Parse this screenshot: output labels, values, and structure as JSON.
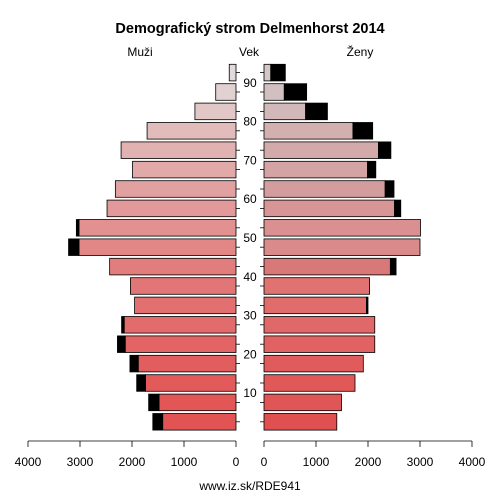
{
  "chart_data": {
    "type": "bar",
    "subtype": "population-pyramid",
    "title": "Demografický strom Delmenhorst 2014",
    "left_label": "Muži",
    "center_label": "Vek",
    "right_label": "Ženy",
    "footer": "www.iz.sk/RDE941",
    "age_groups": [
      "0-4",
      "5-9",
      "10-14",
      "15-19",
      "20-24",
      "25-29",
      "30-34",
      "35-39",
      "40-44",
      "45-49",
      "50-54",
      "55-59",
      "60-64",
      "65-69",
      "70-74",
      "75-79",
      "80-84",
      "85-89",
      "90+"
    ],
    "age_tick_labels": [
      "10",
      "20",
      "30",
      "40",
      "50",
      "60",
      "70",
      "80",
      "90"
    ],
    "x_ticks_left": [
      "4000",
      "3000",
      "2000",
      "1000",
      "0"
    ],
    "x_ticks_right": [
      "0",
      "1000",
      "2000",
      "3000",
      "4000"
    ],
    "xlim": [
      0,
      4000
    ],
    "series": [
      {
        "name": "Muži",
        "values": [
          1410,
          1480,
          1740,
          1880,
          2130,
          2150,
          1950,
          2030,
          2430,
          3020,
          3020,
          2480,
          2320,
          1990,
          2210,
          1710,
          790,
          390,
          130
        ],
        "excess": [
          190,
          200,
          170,
          160,
          150,
          50,
          0,
          0,
          0,
          200,
          50,
          0,
          0,
          0,
          0,
          0,
          0,
          0,
          0
        ]
      },
      {
        "name": "Ženy",
        "values": [
          1400,
          1490,
          1750,
          1910,
          2130,
          2130,
          1970,
          2030,
          2430,
          3000,
          3010,
          2510,
          2330,
          1990,
          2200,
          1710,
          800,
          390,
          130
        ],
        "excess": [
          0,
          0,
          0,
          0,
          0,
          0,
          30,
          0,
          110,
          0,
          0,
          120,
          170,
          160,
          240,
          380,
          420,
          430,
          280
        ]
      }
    ],
    "colors": {
      "male_bars": [
        "#e25353",
        "#e25656",
        "#e25a5a",
        "#e25e5e",
        "#e26464",
        "#e26b6b",
        "#e27070",
        "#e27676",
        "#e27d7d",
        "#e28686",
        "#e29090",
        "#e29999",
        "#e2a1a1",
        "#e2a9a9",
        "#e2b1b1",
        "#e2bbbb",
        "#e2c7c7",
        "#e2d1d1",
        "#e2dada"
      ],
      "female_bars": [
        "#e05050",
        "#e05555",
        "#e05858",
        "#e05c5c",
        "#e06262",
        "#e06868",
        "#e06c6c",
        "#e07272",
        "#d87878",
        "#da8a8a",
        "#da9090",
        "#d89595",
        "#d49d9d",
        "#d4a4a4",
        "#d2aaaa",
        "#d2b0b0",
        "#d2b8b8",
        "#d2c0c0",
        "#d2c8c8"
      ],
      "excess": "#000000"
    }
  }
}
